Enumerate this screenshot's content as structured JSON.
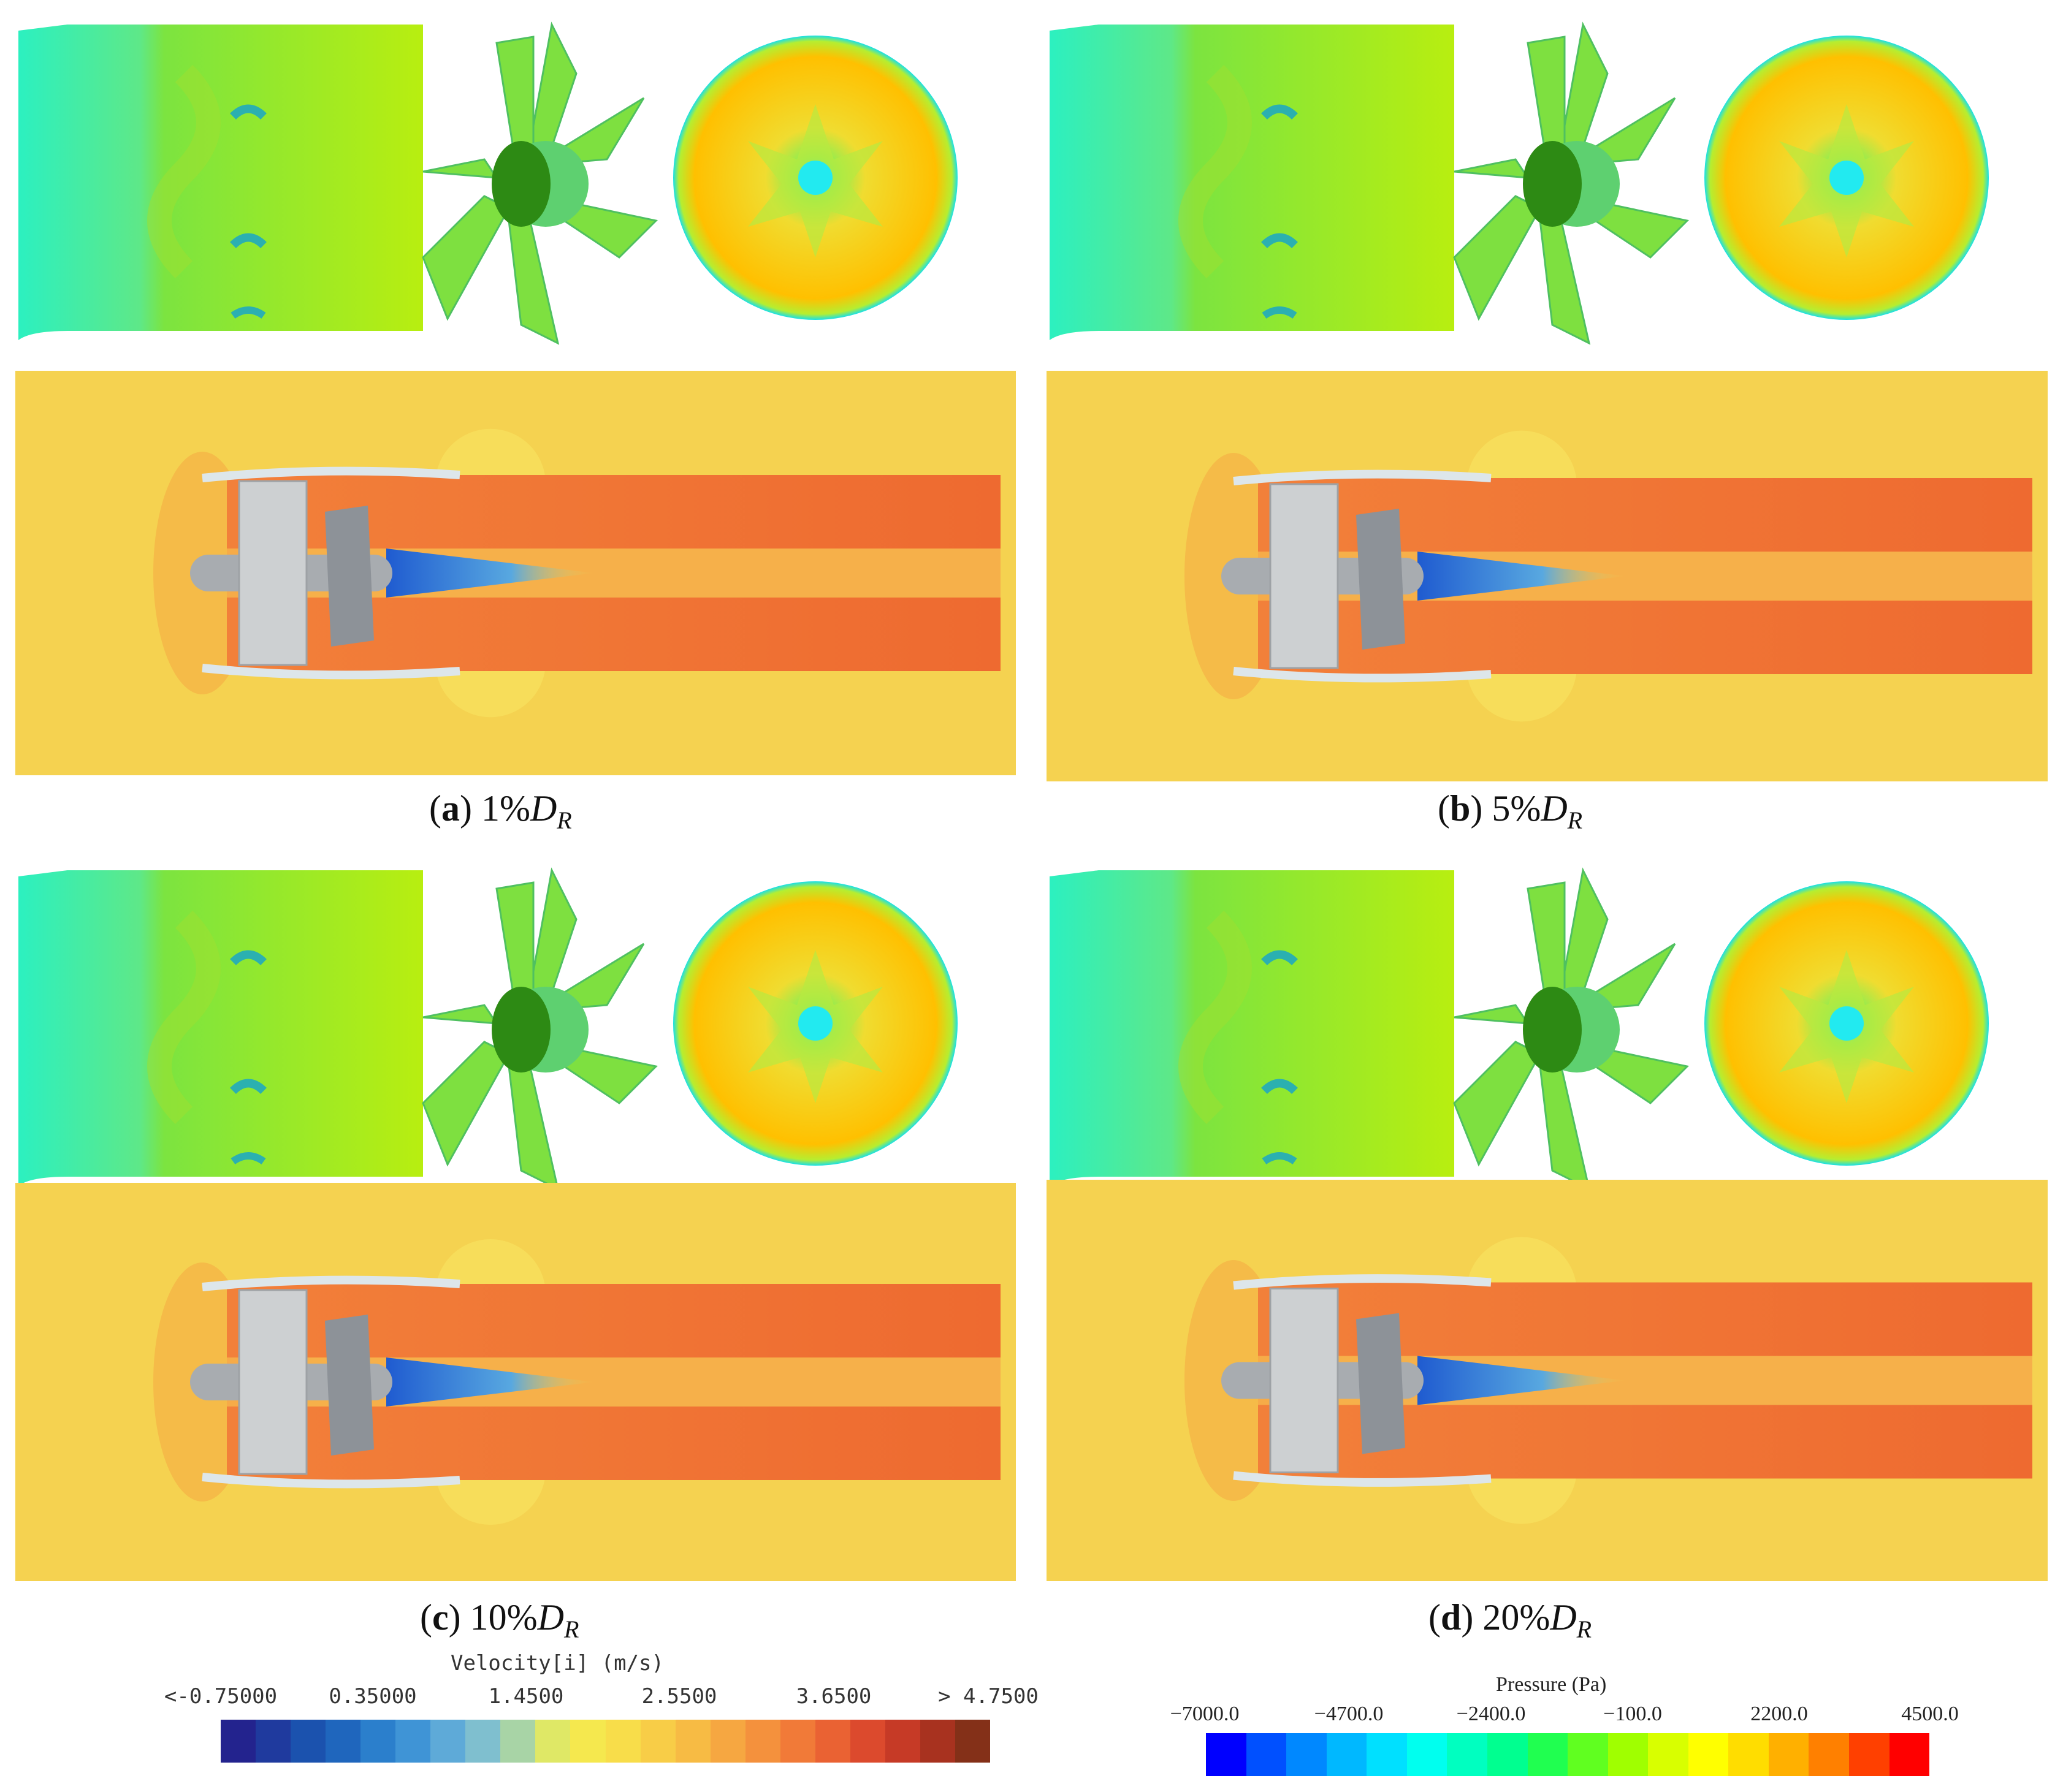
{
  "panels": [
    {
      "letter": "a",
      "text": "1%",
      "symbol": "D",
      "sub": "R"
    },
    {
      "letter": "b",
      "text": "5%",
      "symbol": "D",
      "sub": "R"
    },
    {
      "letter": "c",
      "text": "10%",
      "symbol": "D",
      "sub": "R"
    },
    {
      "letter": "d",
      "text": "20%",
      "symbol": "D",
      "sub": "R"
    }
  ],
  "velocity_colorbar": {
    "title": "Velocity[i] (m/s)",
    "ticks": [
      "<-0.75000",
      "0.35000",
      "1.4500",
      "2.5500",
      "3.6500",
      "> 4.7500"
    ],
    "range": [
      -0.75,
      4.75
    ],
    "colors": [
      "#23238e",
      "#1f3a9e",
      "#1b52ae",
      "#1f66bd",
      "#2b7fcc",
      "#3f94d6",
      "#5eaad8",
      "#7fbfcf",
      "#a8d4a6",
      "#dfe866",
      "#f5e84e",
      "#f8dd4a",
      "#f8cd47",
      "#f7bb44",
      "#f6a741",
      "#f4913d",
      "#f17a38",
      "#ea6233",
      "#dc4a2d",
      "#c63a26",
      "#a8321f",
      "#843018"
    ]
  },
  "pressure_colorbar": {
    "title": "Pressure (Pa)",
    "ticks": [
      "−7000.0",
      "−4700.0",
      "−2400.0",
      "−100.0",
      "2200.0",
      "4500.0"
    ],
    "range": [
      -7000,
      4500
    ],
    "colors": [
      "#0000ff",
      "#0050ff",
      "#0088ff",
      "#00b8ff",
      "#00e0ff",
      "#00ffef",
      "#00ffc0",
      "#00ff90",
      "#20ff50",
      "#60ff20",
      "#a0ff00",
      "#d8ff00",
      "#ffff00",
      "#ffdd00",
      "#ffb000",
      "#ff8000",
      "#ff4000",
      "#ff0000"
    ]
  }
}
